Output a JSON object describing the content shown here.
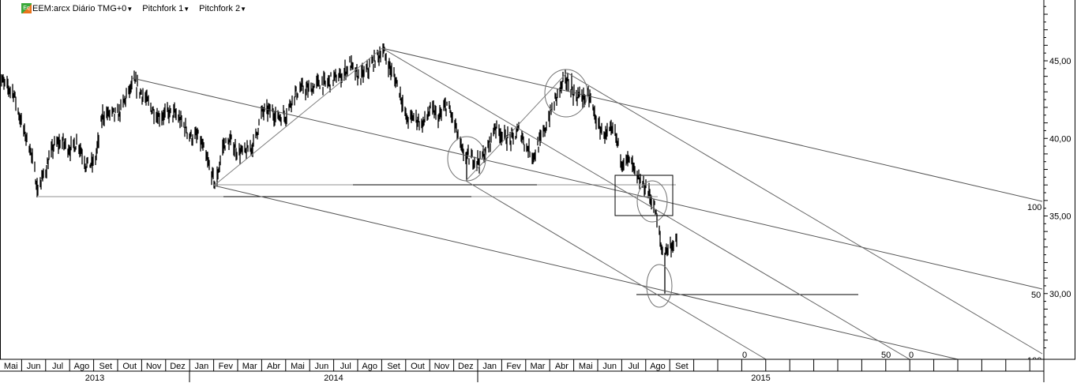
{
  "header": {
    "symbol_menu": "EEM:arcx Diário TMG+0",
    "pitchfork1_menu": "Pitchfork 1",
    "pitchfork2_menu": "Pitchfork 2",
    "logo_icon": "exchange-logo-icon"
  },
  "pitchfork_labels": [
    "100",
    "50",
    "0",
    "50",
    "0",
    "100"
  ],
  "chart_data": {
    "type": "bar",
    "style": "price bars (high-low)",
    "color": "#000000",
    "annotation_color": "#808080",
    "grid": false,
    "title": "",
    "xlabel": "",
    "ylabel": "",
    "xlim": [
      "2013-05-01",
      "2016-04-15"
    ],
    "ylim": [
      26.0,
      48.9
    ],
    "y_ticks": [
      {
        "value": 45,
        "label": "45,00"
      },
      {
        "value": 40,
        "label": "40,00"
      },
      {
        "value": 35,
        "label": "35,00"
      },
      {
        "value": 30,
        "label": "30,00"
      }
    ],
    "x_month_labels": [
      "Mai",
      "Jun",
      "Jul",
      "Ago",
      "Set",
      "Out",
      "Nov",
      "Dez",
      "Jan",
      "Fev",
      "Mar",
      "Abr",
      "Mai",
      "Jun",
      "Jul",
      "Ago",
      "Set",
      "Out",
      "Nov",
      "Dez",
      "Jan",
      "Fev",
      "Mar",
      "Abr",
      "Mai",
      "Jun",
      "Jul",
      "Ago",
      "Set",
      "",
      "",
      "",
      "",
      "",
      "",
      "",
      "",
      "",
      "",
      "",
      "",
      "",
      "",
      ""
    ],
    "x_year_labels": [
      "2013",
      "2014",
      "2015"
    ],
    "series": [
      [
        "2013-05-01",
        44.0
      ],
      [
        "2013-05-11",
        43.4
      ],
      [
        "2013-05-21",
        43.0
      ],
      [
        "2013-06-01",
        40.8
      ],
      [
        "2013-06-11",
        39.4
      ],
      [
        "2013-06-21",
        36.7
      ],
      [
        "2013-07-01",
        38.0
      ],
      [
        "2013-07-11",
        39.5
      ],
      [
        "2013-07-21",
        39.8
      ],
      [
        "2013-08-01",
        39.3
      ],
      [
        "2013-08-11",
        39.8
      ],
      [
        "2013-08-21",
        38.3
      ],
      [
        "2013-09-01",
        38.4
      ],
      [
        "2013-09-11",
        41.5
      ],
      [
        "2013-09-21",
        41.6
      ],
      [
        "2013-10-01",
        41.5
      ],
      [
        "2013-10-11",
        42.7
      ],
      [
        "2013-10-21",
        43.6
      ],
      [
        "2013-11-01",
        42.8
      ],
      [
        "2013-11-11",
        42.0
      ],
      [
        "2013-11-21",
        41.4
      ],
      [
        "2013-12-01",
        41.6
      ],
      [
        "2013-12-11",
        41.6
      ],
      [
        "2013-12-21",
        41.0
      ],
      [
        "2014-01-01",
        40.1
      ],
      [
        "2014-01-11",
        40.1
      ],
      [
        "2014-01-21",
        38.6
      ],
      [
        "2014-02-01",
        37.0
      ],
      [
        "2014-02-11",
        39.6
      ],
      [
        "2014-02-21",
        39.8
      ],
      [
        "2014-03-01",
        39.1
      ],
      [
        "2014-03-11",
        39.1
      ],
      [
        "2014-03-21",
        39.6
      ],
      [
        "2014-04-01",
        41.7
      ],
      [
        "2014-04-11",
        41.8
      ],
      [
        "2014-04-21",
        41.4
      ],
      [
        "2014-05-01",
        41.5
      ],
      [
        "2014-05-11",
        42.8
      ],
      [
        "2014-05-21",
        43.2
      ],
      [
        "2014-06-01",
        43.1
      ],
      [
        "2014-06-11",
        43.6
      ],
      [
        "2014-06-21",
        43.5
      ],
      [
        "2014-07-01",
        43.9
      ],
      [
        "2014-07-11",
        44.0
      ],
      [
        "2014-07-21",
        44.8
      ],
      [
        "2014-08-01",
        43.9
      ],
      [
        "2014-08-11",
        44.3
      ],
      [
        "2014-08-21",
        45.0
      ],
      [
        "2014-09-01",
        45.7
      ],
      [
        "2014-09-11",
        44.4
      ],
      [
        "2014-09-21",
        43.3
      ],
      [
        "2014-10-01",
        41.2
      ],
      [
        "2014-10-11",
        41.4
      ],
      [
        "2014-10-21",
        40.9
      ],
      [
        "2014-11-01",
        41.9
      ],
      [
        "2014-11-11",
        41.3
      ],
      [
        "2014-11-21",
        42.2
      ],
      [
        "2014-12-01",
        40.9
      ],
      [
        "2014-12-11",
        39.0
      ],
      [
        "2014-12-21",
        38.7
      ],
      [
        "2015-01-01",
        38.6
      ],
      [
        "2015-01-11",
        39.2
      ],
      [
        "2015-01-21",
        40.8
      ],
      [
        "2015-02-01",
        40.1
      ],
      [
        "2015-02-11",
        39.9
      ],
      [
        "2015-02-21",
        40.6
      ],
      [
        "2015-03-01",
        39.5
      ],
      [
        "2015-03-11",
        38.9
      ],
      [
        "2015-03-21",
        40.0
      ],
      [
        "2015-04-01",
        41.6
      ],
      [
        "2015-04-11",
        43.0
      ],
      [
        "2015-04-21",
        43.8
      ],
      [
        "2015-05-01",
        42.8
      ],
      [
        "2015-05-11",
        42.7
      ],
      [
        "2015-05-21",
        42.6
      ],
      [
        "2015-06-01",
        40.7
      ],
      [
        "2015-06-11",
        40.2
      ],
      [
        "2015-06-21",
        40.5
      ],
      [
        "2015-07-01",
        38.5
      ],
      [
        "2015-07-11",
        38.6
      ],
      [
        "2015-07-21",
        37.3
      ],
      [
        "2015-08-01",
        36.8
      ],
      [
        "2015-08-11",
        35.6
      ],
      [
        "2015-08-21",
        32.6
      ],
      [
        "2015-09-01",
        33.1
      ],
      [
        "2015-09-08",
        33.3
      ]
    ],
    "extremes": [
      {
        "date": "2013-06-20",
        "low": 36.2
      },
      {
        "date": "2013-10-22",
        "high": 43.8
      },
      {
        "date": "2014-02-03",
        "low": 36.9
      },
      {
        "date": "2014-09-03",
        "high": 45.9
      },
      {
        "date": "2014-12-16",
        "low": 37.3
      },
      {
        "date": "2015-04-28",
        "high": 44.2
      },
      {
        "date": "2015-08-24",
        "low": 30.0
      }
    ]
  }
}
